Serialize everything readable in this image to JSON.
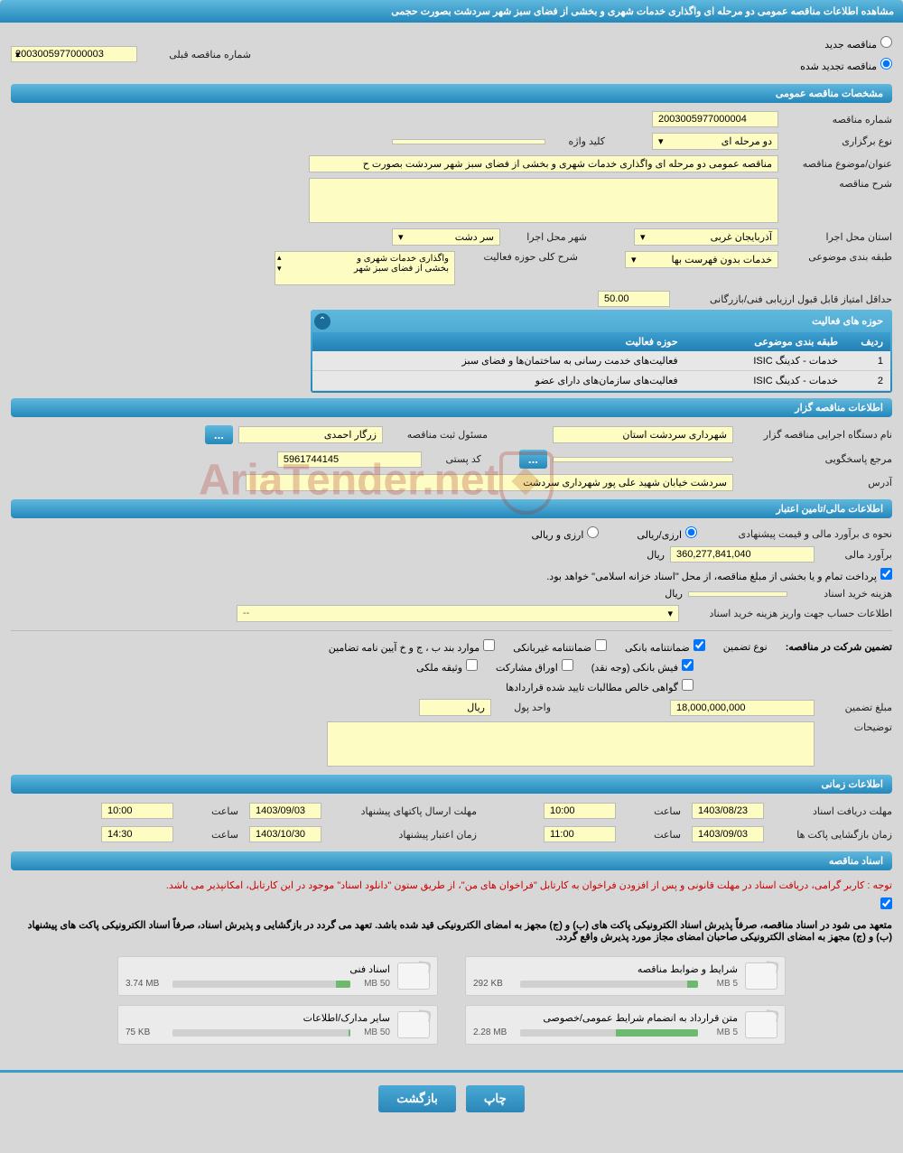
{
  "page_title": "مشاهده اطلاعات مناقصه عمومی دو مرحله ای واگذاری خدمات شهری و بخشی از فضای سبز شهر سردشت بصورت حجمی",
  "radios": {
    "new": "مناقصه جدید",
    "renewed": "مناقصه تجدید شده",
    "selected": "renewed"
  },
  "prev_number": {
    "label": "شماره مناقصه قبلی",
    "value": "2003005977000003"
  },
  "section_general": "مشخصات مناقصه عمومی",
  "g": {
    "num_lbl": "شماره مناقصه",
    "num": "2003005977000004",
    "type_lbl": "نوع برگزاری",
    "type": "دو مرحله ای",
    "kw_lbl": "کلید واژه",
    "kw": "",
    "subject_lbl": "عنوان/موضوع مناقصه",
    "subject": "مناقصه عمومی دو مرحله ای واگذاری خدمات شهری و بخشی از فضای سبز شهر سردشت بصورت ح",
    "desc_lbl": "شرح مناقصه",
    "prov_lbl": "استان محل اجرا",
    "prov": "آذربایجان غربی",
    "city_lbl": "شهر محل اجرا",
    "city": "سر دشت",
    "cat_lbl": "طبقه بندی موضوعی",
    "cat": "خدمات بدون فهرست بها",
    "scope_lbl": "شرح کلی حوزه فعالیت",
    "scope1": "واگذاری خدمات شهری و",
    "scope2": "بخشی از فضای سبز شهر",
    "minscore_lbl": "حداقل امتیاز قابل قبول ارزیابی فنی/بازرگانی",
    "minscore": "50.00"
  },
  "activity": {
    "title": "حوزه های فعالیت",
    "cols": {
      "row": "ردیف",
      "cat": "طبقه بندی موضوعی",
      "field": "حوزه فعالیت"
    },
    "rows": [
      {
        "n": "1",
        "cat": "خدمات - کدینگ ISIC",
        "field": "فعالیت‌های خدمت رسانی به ساختمان‌ها و فضای سبز"
      },
      {
        "n": "2",
        "cat": "خدمات - کدینگ ISIC",
        "field": "فعالیت‌های سازمان‌های دارای عضو"
      }
    ]
  },
  "section_org": "اطلاعات مناقصه گزار",
  "org": {
    "exec_lbl": "نام دستگاه اجرایی مناقصه گزار",
    "exec": "شهرداری سردشت استان",
    "reg_lbl": "مسئول ثبت مناقصه",
    "reg": "زرگار احمدی",
    "ref_lbl": "مرجع پاسخگویی",
    "post_lbl": "کد پستی",
    "post": "5961744145",
    "addr_lbl": "آدرس",
    "addr": "سردشت خیابان شهید علی پور شهرداری سردشت"
  },
  "section_fin": "اطلاعات مالی/تامین اعتبار",
  "fin": {
    "method_lbl": "نحوه ی برآورد مالی و قیمت پیشنهادی",
    "opt1": "ارزی/ریالی",
    "opt2": "ارزی و ریالی",
    "est_lbl": "برآورد مالی",
    "est": "360,277,841,040",
    "unit": "ریال",
    "note": "پرداخت تمام و یا بخشی از مبلغ مناقصه، از محل \"اسناد خزانه اسلامی\" خواهد بود.",
    "doc_cost_lbl": "هزینه خرید اسناد",
    "doc_cost_unit": "ریال",
    "acct_lbl": "اطلاعات حساب جهت واریز هزینه خرید اسناد"
  },
  "guarantee": {
    "lead": "تضمین شرکت در مناقصه:",
    "type_lbl": "نوع تضمین",
    "cb": [
      "ضمانتنامه بانکی",
      "ضمانتنامه غیربانکی",
      "موارد بند ب ، ج و خ آیین نامه تضامین",
      "فیش بانکی (وجه نقد)",
      "اوراق مشارکت",
      "وثیقه ملکی",
      "گواهی خالص مطالبات تایید شده قراردادها"
    ],
    "amount_lbl": "مبلغ تضمین",
    "amount": "18,000,000,000",
    "unit_lbl": "واحد پول",
    "unit": "ریال",
    "desc_lbl": "توضیحات"
  },
  "section_time": "اطلاعات زمانی",
  "time": {
    "recv_lbl": "مهلت دریافت اسناد",
    "recv_d": "1403/08/23",
    "recv_t": "10:00",
    "send_lbl": "مهلت ارسال پاکتهای پیشنهاد",
    "send_d": "1403/09/03",
    "send_t": "10:00",
    "open_lbl": "زمان بازگشایی پاکت ها",
    "open_d": "1403/09/03",
    "open_t": "11:00",
    "valid_lbl": "زمان اعتبار پیشنهاد",
    "valid_d": "1403/10/30",
    "valid_t": "14:30",
    "t_lbl": "ساعت"
  },
  "section_docs": "اسناد مناقصه",
  "docs_note1": "توجه : کاربر گرامی، دریافت اسناد در مهلت قانونی و پس از افزودن فراخوان به کارتابل \"فراخوان های من\"، از طریق ستون \"دانلود اسناد\" موجود در این کارتابل، امکانپذیر می باشد.",
  "docs_note2": "متعهد می شود در اسناد مناقصه، صرفاً پذیرش اسناد الکترونیکی پاکت های (ب) و (ج) مجهز به امضای الکترونیکی قید شده باشد. تعهد می گردد در بازگشایی و پذیرش اسناد، صرفاً اسناد الکترونیکی پاکت های پیشنهاد (ب) و (ج) مجهز به امضای الکترونیکی صاحبان امضای مجاز مورد پذیرش واقع گردد.",
  "docs": [
    {
      "title": "شرایط و ضوابط مناقصه",
      "used": "292 KB",
      "cap": "5 MB",
      "pct": 6
    },
    {
      "title": "اسناد فنی",
      "used": "3.74 MB",
      "cap": "50 MB",
      "pct": 8
    },
    {
      "title": "متن قرارداد به انضمام شرایط عمومی/خصوصی",
      "used": "2.28 MB",
      "cap": "5 MB",
      "pct": 46
    },
    {
      "title": "سایر مدارک/اطلاعات",
      "used": "75 KB",
      "cap": "50 MB",
      "pct": 1
    }
  ],
  "buttons": {
    "print": "چاپ",
    "back": "بازگشت",
    "ellipsis": "..."
  },
  "watermark": "AriaTender.net"
}
